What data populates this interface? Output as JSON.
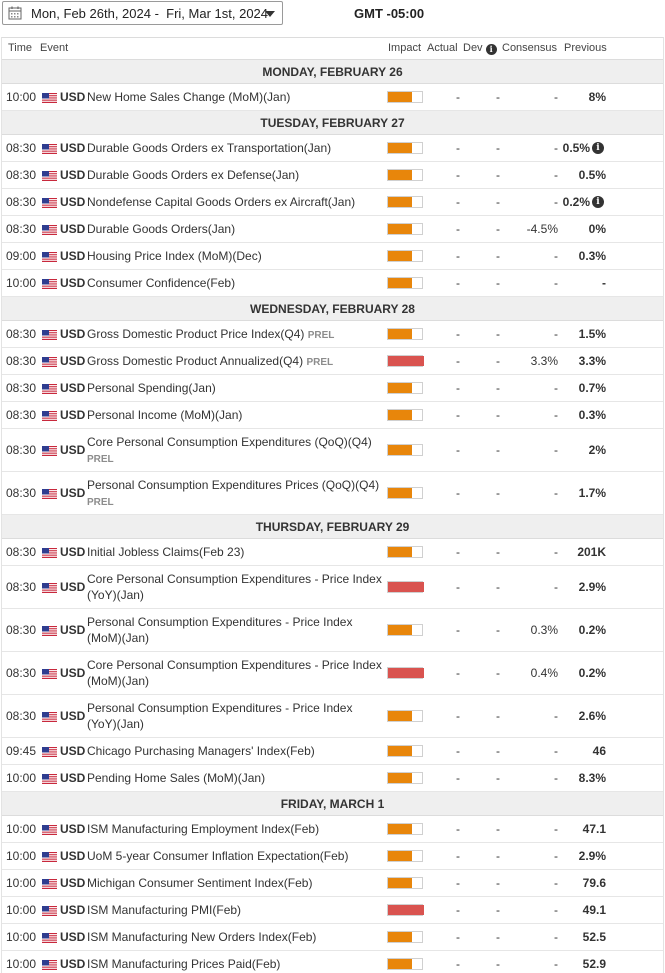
{
  "header": {
    "date_range": "Mon, Feb 26th, 2024 -  Fri, Mar 1st, 2024",
    "timezone": "GMT -05:00"
  },
  "columns": {
    "time": "Time",
    "event": "Event",
    "impact": "Impact",
    "actual": "Actual",
    "dev": "Dev",
    "consensus": "Consensus",
    "previous": "Previous"
  },
  "colors": {
    "impact_medium": "#e8860b",
    "impact_high": "#d9534f",
    "day_header_bg": "#efefef"
  },
  "days": [
    {
      "label": "MONDAY, FEBRUARY 26",
      "events": [
        {
          "time": "10:00",
          "currency": "USD",
          "event": "New Home Sales Change (MoM)(Jan)",
          "prel": "",
          "impact": "medium",
          "actual": "-",
          "dev": "-",
          "consensus": "-",
          "previous": "8%",
          "info": false
        }
      ]
    },
    {
      "label": "TUESDAY, FEBRUARY 27",
      "events": [
        {
          "time": "08:30",
          "currency": "USD",
          "event": "Durable Goods Orders ex Transportation(Jan)",
          "prel": "",
          "impact": "medium",
          "actual": "-",
          "dev": "-",
          "consensus": "-",
          "previous": "0.5%",
          "info": true
        },
        {
          "time": "08:30",
          "currency": "USD",
          "event": "Durable Goods Orders ex Defense(Jan)",
          "prel": "",
          "impact": "medium",
          "actual": "-",
          "dev": "-",
          "consensus": "-",
          "previous": "0.5%",
          "info": false
        },
        {
          "time": "08:30",
          "currency": "USD",
          "event": "Nondefense Capital Goods Orders ex Aircraft(Jan)",
          "prel": "",
          "impact": "medium",
          "actual": "-",
          "dev": "-",
          "consensus": "-",
          "previous": "0.2%",
          "info": true
        },
        {
          "time": "08:30",
          "currency": "USD",
          "event": "Durable Goods Orders(Jan)",
          "prel": "",
          "impact": "medium",
          "actual": "-",
          "dev": "-",
          "consensus": "-4.5%",
          "previous": "0%",
          "info": false
        },
        {
          "time": "09:00",
          "currency": "USD",
          "event": "Housing Price Index (MoM)(Dec)",
          "prel": "",
          "impact": "medium",
          "actual": "-",
          "dev": "-",
          "consensus": "-",
          "previous": "0.3%",
          "info": false
        },
        {
          "time": "10:00",
          "currency": "USD",
          "event": "Consumer Confidence(Feb)",
          "prel": "",
          "impact": "medium",
          "actual": "-",
          "dev": "-",
          "consensus": "-",
          "previous": "-",
          "info": false
        }
      ]
    },
    {
      "label": "WEDNESDAY, FEBRUARY 28",
      "events": [
        {
          "time": "08:30",
          "currency": "USD",
          "event": "Gross Domestic Product Price Index(Q4)",
          "prel": "PREL",
          "impact": "medium",
          "actual": "-",
          "dev": "-",
          "consensus": "-",
          "previous": "1.5%",
          "info": false
        },
        {
          "time": "08:30",
          "currency": "USD",
          "event": "Gross Domestic Product Annualized(Q4)",
          "prel": "PREL",
          "impact": "high",
          "actual": "-",
          "dev": "-",
          "consensus": "3.3%",
          "previous": "3.3%",
          "info": false
        },
        {
          "time": "08:30",
          "currency": "USD",
          "event": "Personal Spending(Jan)",
          "prel": "",
          "impact": "medium",
          "actual": "-",
          "dev": "-",
          "consensus": "-",
          "previous": "0.7%",
          "info": false
        },
        {
          "time": "08:30",
          "currency": "USD",
          "event": "Personal Income (MoM)(Jan)",
          "prel": "",
          "impact": "medium",
          "actual": "-",
          "dev": "-",
          "consensus": "-",
          "previous": "0.3%",
          "info": false
        },
        {
          "time": "08:30",
          "currency": "USD",
          "event": "Core Personal Consumption Expenditures (QoQ)(Q4)",
          "prel": "PREL",
          "impact": "medium",
          "actual": "-",
          "dev": "-",
          "consensus": "-",
          "previous": "2%",
          "info": false,
          "tall": true
        },
        {
          "time": "08:30",
          "currency": "USD",
          "event": "Personal Consumption Expenditures Prices (QoQ)(Q4)",
          "prel": "PREL",
          "impact": "medium",
          "actual": "-",
          "dev": "-",
          "consensus": "-",
          "previous": "1.7%",
          "info": false,
          "tall": true
        }
      ]
    },
    {
      "label": "THURSDAY, FEBRUARY 29",
      "events": [
        {
          "time": "08:30",
          "currency": "USD",
          "event": "Initial Jobless Claims(Feb 23)",
          "prel": "",
          "impact": "medium",
          "actual": "-",
          "dev": "-",
          "consensus": "-",
          "previous": "201K",
          "info": false
        },
        {
          "time": "08:30",
          "currency": "USD",
          "event": "Core Personal Consumption Expenditures - Price Index (YoY)(Jan)",
          "prel": "",
          "impact": "high",
          "actual": "-",
          "dev": "-",
          "consensus": "-",
          "previous": "2.9%",
          "info": false,
          "tall": true
        },
        {
          "time": "08:30",
          "currency": "USD",
          "event": "Personal Consumption Expenditures - Price Index (MoM)(Jan)",
          "prel": "",
          "impact": "medium",
          "actual": "-",
          "dev": "-",
          "consensus": "0.3%",
          "previous": "0.2%",
          "info": false,
          "tall": true
        },
        {
          "time": "08:30",
          "currency": "USD",
          "event": "Core Personal Consumption Expenditures - Price Index (MoM)(Jan)",
          "prel": "",
          "impact": "high",
          "actual": "-",
          "dev": "-",
          "consensus": "0.4%",
          "previous": "0.2%",
          "info": false,
          "tall": true
        },
        {
          "time": "08:30",
          "currency": "USD",
          "event": "Personal Consumption Expenditures - Price Index (YoY)(Jan)",
          "prel": "",
          "impact": "medium",
          "actual": "-",
          "dev": "-",
          "consensus": "-",
          "previous": "2.6%",
          "info": false,
          "tall": true
        },
        {
          "time": "09:45",
          "currency": "USD",
          "event": "Chicago Purchasing Managers' Index(Feb)",
          "prel": "",
          "impact": "medium",
          "actual": "-",
          "dev": "-",
          "consensus": "-",
          "previous": "46",
          "info": false
        },
        {
          "time": "10:00",
          "currency": "USD",
          "event": "Pending Home Sales (MoM)(Jan)",
          "prel": "",
          "impact": "medium",
          "actual": "-",
          "dev": "-",
          "consensus": "-",
          "previous": "8.3%",
          "info": false
        }
      ]
    },
    {
      "label": "FRIDAY, MARCH 1",
      "events": [
        {
          "time": "10:00",
          "currency": "USD",
          "event": "ISM Manufacturing Employment Index(Feb)",
          "prel": "",
          "impact": "medium",
          "actual": "-",
          "dev": "-",
          "consensus": "-",
          "previous": "47.1",
          "info": false
        },
        {
          "time": "10:00",
          "currency": "USD",
          "event": "UoM 5-year Consumer Inflation Expectation(Feb)",
          "prel": "",
          "impact": "medium",
          "actual": "-",
          "dev": "-",
          "consensus": "-",
          "previous": "2.9%",
          "info": false
        },
        {
          "time": "10:00",
          "currency": "USD",
          "event": "Michigan Consumer Sentiment Index(Feb)",
          "prel": "",
          "impact": "medium",
          "actual": "-",
          "dev": "-",
          "consensus": "-",
          "previous": "79.6",
          "info": false
        },
        {
          "time": "10:00",
          "currency": "USD",
          "event": "ISM Manufacturing PMI(Feb)",
          "prel": "",
          "impact": "high",
          "actual": "-",
          "dev": "-",
          "consensus": "-",
          "previous": "49.1",
          "info": false
        },
        {
          "time": "10:00",
          "currency": "USD",
          "event": "ISM Manufacturing New Orders Index(Feb)",
          "prel": "",
          "impact": "medium",
          "actual": "-",
          "dev": "-",
          "consensus": "-",
          "previous": "52.5",
          "info": false
        },
        {
          "time": "10:00",
          "currency": "USD",
          "event": "ISM Manufacturing Prices Paid(Feb)",
          "prel": "",
          "impact": "medium",
          "actual": "-",
          "dev": "-",
          "consensus": "-",
          "previous": "52.9",
          "info": false
        }
      ]
    }
  ]
}
